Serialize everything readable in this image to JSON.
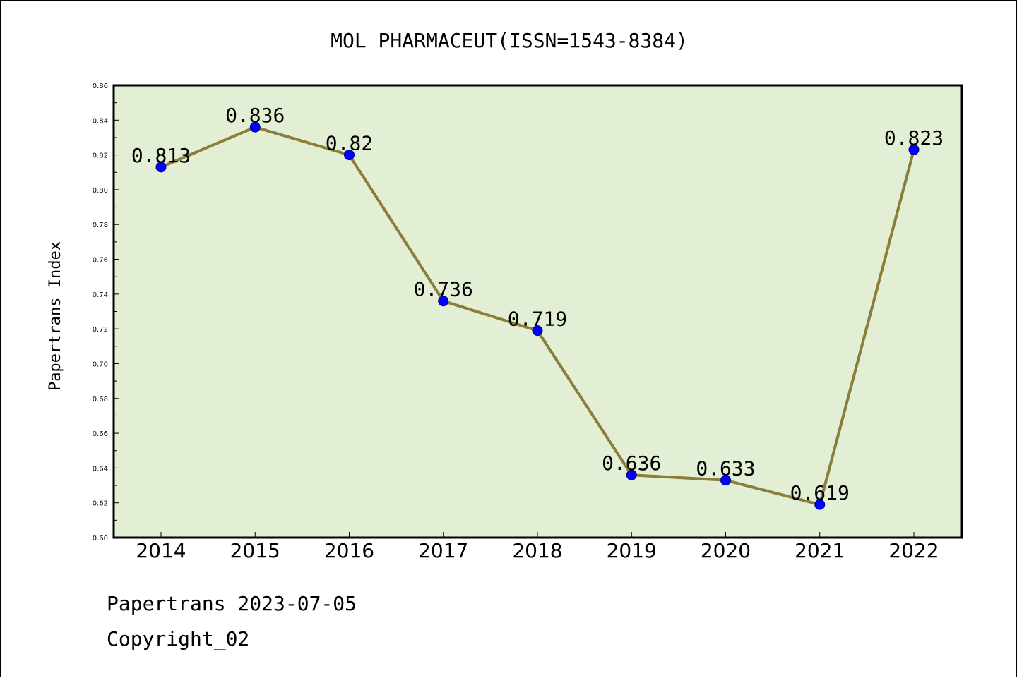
{
  "chart_data": {
    "type": "line",
    "title": "MOL PHARMACEUT(ISSN=1543-8384)",
    "xlabel": "",
    "ylabel": "Papertrans Index",
    "categories": [
      "2014",
      "2015",
      "2016",
      "2017",
      "2018",
      "2019",
      "2020",
      "2021",
      "2022"
    ],
    "series": [
      {
        "values": [
          0.813,
          0.836,
          0.82,
          0.736,
          0.719,
          0.636,
          0.633,
          0.619,
          0.823
        ],
        "labels": [
          "0.813",
          "0.836",
          "0.82",
          "0.736",
          "0.719",
          "0.636",
          "0.633",
          "0.619",
          "0.823"
        ],
        "line_color": "#8b7d3a",
        "marker_color": "#0000ff"
      }
    ],
    "ylim": [
      0.6,
      0.86
    ],
    "yticks": [
      "0.60",
      "0.62",
      "0.64",
      "0.66",
      "0.68",
      "0.70",
      "0.72",
      "0.74",
      "0.76",
      "0.78",
      "0.80",
      "0.82",
      "0.84",
      "0.86"
    ],
    "plot_background": "#e2efd4",
    "grid": false,
    "legend": "none"
  },
  "footer": {
    "line1": "Papertrans 2023-07-05",
    "line2": "Copyright_02"
  }
}
